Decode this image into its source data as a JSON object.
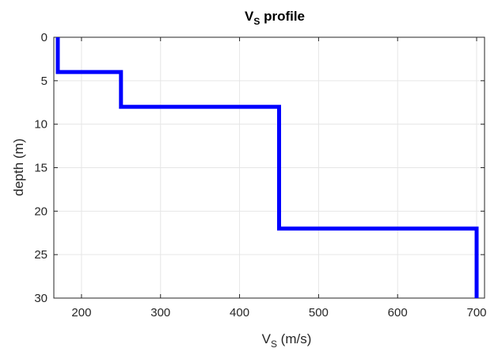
{
  "chart_data": {
    "type": "line",
    "title": "V",
    "title_sub": "S",
    "title_rest": " profile",
    "xlabel": "V",
    "xlabel_sub": "S",
    "xlabel_rest": " (m/s)",
    "ylabel": "depth (m)",
    "xlim": [
      165,
      710
    ],
    "ylim": [
      0,
      30
    ],
    "y_reversed": true,
    "grid": true,
    "xticks": [
      200,
      300,
      400,
      500,
      600,
      700
    ],
    "yticks": [
      0,
      5,
      10,
      15,
      20,
      25,
      30
    ],
    "series": [
      {
        "x": [
          170,
          170,
          250,
          250,
          450,
          450,
          700,
          700
        ],
        "y": [
          0,
          4,
          4,
          8,
          8,
          22,
          22,
          30
        ]
      }
    ],
    "colors": {
      "line": "#0000ff",
      "grid": "#e6e6e6",
      "axis": "#262626"
    }
  }
}
